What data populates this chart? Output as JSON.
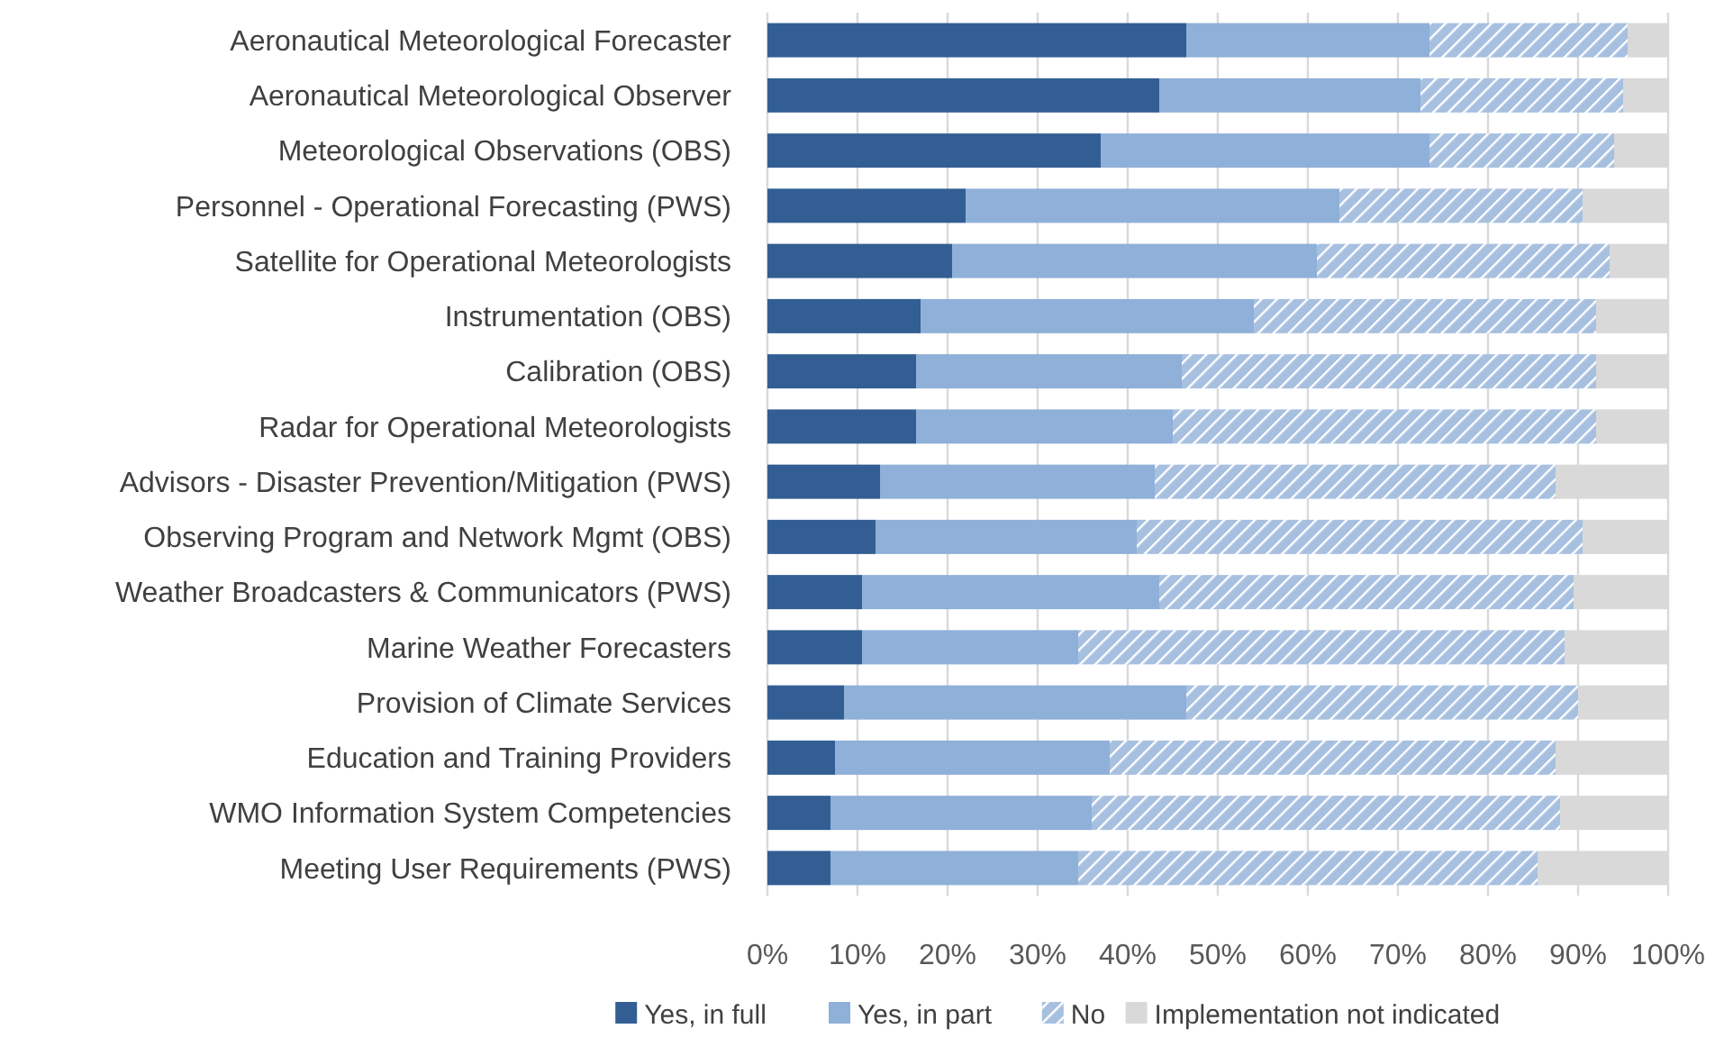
{
  "chart_data": {
    "type": "bar",
    "orientation": "horizontal",
    "stacked": true,
    "categories": [
      "Aeronautical Meteorological Forecaster",
      "Aeronautical Meteorological Observer",
      "Meteorological Observations (OBS)",
      "Personnel - Operational Forecasting (PWS)",
      "Satellite for Operational Meteorologists",
      "Instrumentation (OBS)",
      "Calibration (OBS)",
      "Radar for Operational Meteorologists",
      "Advisors - Disaster Prevention/Mitigation (PWS)",
      "Observing Program and Network Mgmt (OBS)",
      "Weather Broadcasters & Communicators (PWS)",
      "Marine Weather Forecasters",
      "Provision of Climate Services",
      "Education and Training Providers",
      "WMO Information System Competencies",
      "Meeting User Requirements (PWS)"
    ],
    "series": [
      {
        "name": "Yes, in full",
        "color": "#325e93",
        "values": [
          46.5,
          43.5,
          37,
          22,
          20.5,
          17,
          16.5,
          16.5,
          12.5,
          12,
          10.5,
          10.5,
          8.5,
          7.5,
          7,
          7
        ]
      },
      {
        "name": "Yes, in part",
        "color": "#8fb0d8",
        "values": [
          27,
          29,
          36.5,
          41.5,
          40.5,
          37,
          29.5,
          28.5,
          30.5,
          29,
          33,
          24,
          38,
          30.5,
          29,
          27.5
        ]
      },
      {
        "name": "No",
        "color": "#a7c0e0",
        "values": [
          22,
          22.5,
          20.5,
          27,
          32.5,
          38,
          46,
          47,
          44.5,
          49.5,
          46,
          54,
          43.5,
          49.5,
          52,
          51
        ]
      },
      {
        "name": "Implementation not indicated",
        "color": "#d9d9d9",
        "values": [
          4.5,
          5,
          6,
          9.5,
          6.5,
          8,
          8,
          8,
          12.5,
          9.5,
          10.5,
          11.5,
          10,
          12.5,
          12,
          14.5
        ]
      }
    ],
    "xlim": [
      0,
      100
    ],
    "xticks": [
      {
        "value": 0,
        "label": "0%"
      },
      {
        "value": 10,
        "label": "10%"
      },
      {
        "value": 20,
        "label": "20%"
      },
      {
        "value": 30,
        "label": "30%"
      },
      {
        "value": 40,
        "label": "40%"
      },
      {
        "value": 50,
        "label": "50%"
      },
      {
        "value": 60,
        "label": "60%"
      },
      {
        "value": 70,
        "label": "70%"
      },
      {
        "value": 80,
        "label": "80%"
      },
      {
        "value": 90,
        "label": "90%"
      },
      {
        "value": 100,
        "label": "100%"
      }
    ],
    "grid": "x",
    "legend": "bottom"
  }
}
